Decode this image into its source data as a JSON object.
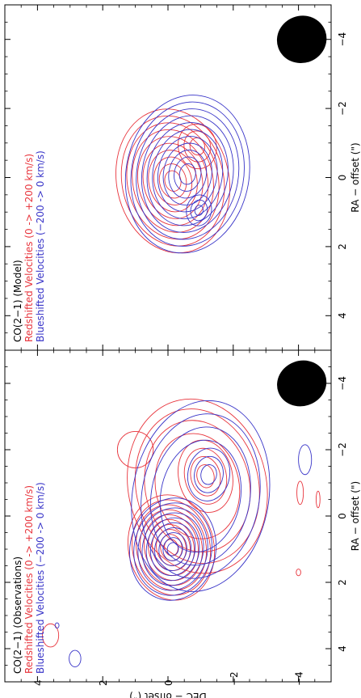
{
  "chart_data": [
    {
      "type": "contour",
      "panel": "observations",
      "title_lines": [
        "CO(2−1) (Observations)",
        "Redshifted Velocities (0 -> +200 km/s)",
        "Blueshifted Velocities (−200 -> 0 km/s)"
      ],
      "xlabel": "RA − offset (\")",
      "ylabel": "DEC − offset (\")",
      "xlim": [
        5,
        -5
      ],
      "ylim": [
        -5,
        5
      ],
      "x_ticks": [
        "4",
        "2",
        "0",
        "−2",
        "−4"
      ],
      "y_ticks": [
        "4",
        "2",
        "0",
        "−2",
        "−4"
      ],
      "beam": {
        "x": -4.0,
        "y": -4.1,
        "major": 0.85,
        "minor": 0.65
      },
      "series": [
        {
          "name": "Redshifted Velocities (0 -> +200 km/s)",
          "color": "#e8343c",
          "components": [
            {
              "x": 0.95,
              "y": -0.1,
              "levels_rx": [
                0.25,
                0.4,
                0.55,
                0.7,
                0.85,
                1.0,
                1.15,
                1.3,
                1.45,
                1.6
              ],
              "ratio": 0.82
            },
            {
              "x": -1.2,
              "y": -1.15,
              "levels_rx": [
                0.35,
                0.6,
                0.85,
                1.1
              ],
              "ratio": 0.75
            },
            {
              "x": -0.9,
              "y": -0.9,
              "levels_rx": [
                1.6,
                2.0,
                2.35,
                2.65
              ],
              "ratio": 0.8
            }
          ],
          "spurs": [
            {
              "x": -2.0,
              "y": 1.0,
              "rx": 0.55,
              "ry": 0.55
            },
            {
              "x": 3.6,
              "y": 3.6,
              "rx": 0.35,
              "ry": 0.25
            },
            {
              "x": 1.7,
              "y": -4.0,
              "rx": 0.1,
              "ry": 0.07
            },
            {
              "x": -0.7,
              "y": -4.05,
              "rx": 0.35,
              "ry": 0.1
            },
            {
              "x": -0.5,
              "y": -4.6,
              "rx": 0.25,
              "ry": 0.06
            }
          ]
        },
        {
          "name": "Blueshifted Velocities (−200 -> 0 km/s)",
          "color": "#3834c8",
          "components": [
            {
              "x": 1.0,
              "y": -0.15,
              "levels_rx": [
                0.2,
                0.35,
                0.5,
                0.65,
                0.8,
                0.95,
                1.1,
                1.25,
                1.4,
                1.55
              ],
              "ratio": 0.85
            },
            {
              "x": -1.25,
              "y": -1.25,
              "levels_rx": [
                0.3,
                0.55,
                0.8
              ],
              "ratio": 0.8
            },
            {
              "x": -0.6,
              "y": -1.0,
              "levels_rx": [
                1.7,
                2.1,
                2.5,
                2.9
              ],
              "ratio": 0.72
            }
          ],
          "spurs": [
            {
              "x": 3.3,
              "y": 3.4,
              "rx": 0.08,
              "ry": 0.06
            },
            {
              "x": 4.3,
              "y": 2.85,
              "rx": 0.25,
              "ry": 0.18
            },
            {
              "x": -1.7,
              "y": -4.2,
              "rx": 0.45,
              "ry": 0.2
            }
          ]
        }
      ]
    },
    {
      "type": "contour",
      "panel": "model",
      "title_lines": [
        "CO(2−1) (Model)",
        "Redshifted Velocities (0 -> +200 km/s)",
        "Blueshifted Velocities (−200 -> 0 km/s)"
      ],
      "xlabel": "RA − offset (\")",
      "xlim": [
        5,
        -5
      ],
      "ylim": [
        -5,
        5
      ],
      "x_ticks": [
        "4",
        "2",
        "0",
        "−2",
        "−4"
      ],
      "beam": {
        "x": -4.0,
        "y": -4.1,
        "major": 0.85,
        "minor": 0.65
      },
      "series": [
        {
          "name": "Redshifted Velocities (0 -> +200 km/s)",
          "color": "#e8343c",
          "components": [
            {
              "x": 0.1,
              "y": -0.15,
              "levels_rx": [
                0.3,
                0.5,
                0.7,
                0.9,
                1.1,
                1.3,
                1.5,
                1.7,
                1.9,
                2.1
              ],
              "ratio": 0.82
            },
            {
              "x": -0.9,
              "y": -0.9,
              "levels_rx": [
                0.25,
                0.45,
                0.65
              ],
              "ratio": 0.9
            }
          ]
        },
        {
          "name": "Blueshifted Velocities (−200 -> 0 km/s)",
          "color": "#3834c8",
          "components": [
            {
              "x": -0.1,
              "y": -0.6,
              "levels_rx": [
                0.3,
                0.5,
                0.7,
                0.9,
                1.1,
                1.3,
                1.5,
                1.7,
                1.9,
                2.1,
                2.3
              ],
              "ratio": 0.82
            },
            {
              "x": 0.95,
              "y": -0.95,
              "levels_rx": [
                0.15,
                0.3,
                0.45
              ],
              "ratio": 0.85
            }
          ]
        }
      ]
    }
  ]
}
